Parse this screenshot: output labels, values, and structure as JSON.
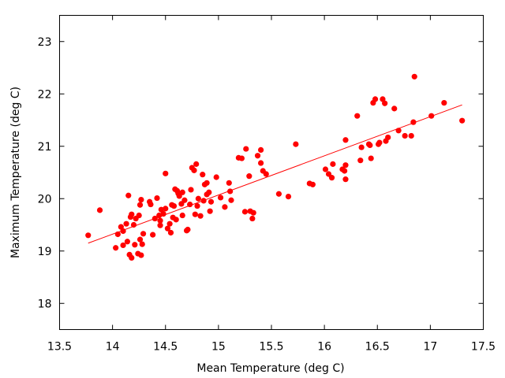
{
  "chart_data": {
    "type": "scatter",
    "title": "",
    "xlabel": "Mean Temperature (deg C)",
    "ylabel": "Maximum Temperature (deg C)",
    "xlim": [
      13.5,
      17.5
    ],
    "ylim": [
      17.5,
      23.5
    ],
    "xticks": [
      "13.5",
      "14",
      "14.5",
      "15",
      "15.5",
      "16",
      "16.5",
      "17",
      "17.5"
    ],
    "yticks": [
      "18",
      "19",
      "20",
      "21",
      "22",
      "23"
    ],
    "grid": false,
    "legend": "none",
    "point_color": "#ff0000",
    "line_color": "#ff0000",
    "fit_line": {
      "x": [
        13.77,
        17.3
      ],
      "y": [
        19.15,
        21.79
      ]
    },
    "points": [
      [
        13.77,
        19.3
      ],
      [
        13.88,
        19.78
      ],
      [
        14.03,
        19.06
      ],
      [
        14.05,
        19.32
      ],
      [
        14.08,
        19.46
      ],
      [
        14.1,
        19.11
      ],
      [
        14.1,
        19.38
      ],
      [
        14.13,
        19.52
      ],
      [
        14.14,
        19.18
      ],
      [
        14.15,
        20.06
      ],
      [
        14.16,
        18.93
      ],
      [
        14.17,
        19.65
      ],
      [
        14.18,
        18.87
      ],
      [
        14.18,
        19.7
      ],
      [
        14.2,
        19.5
      ],
      [
        14.21,
        19.12
      ],
      [
        14.22,
        19.62
      ],
      [
        14.24,
        18.95
      ],
      [
        14.25,
        19.68
      ],
      [
        14.26,
        19.88
      ],
      [
        14.26,
        19.22
      ],
      [
        14.27,
        18.92
      ],
      [
        14.27,
        19.98
      ],
      [
        14.28,
        19.13
      ],
      [
        14.29,
        19.33
      ],
      [
        14.35,
        19.94
      ],
      [
        14.36,
        19.89
      ],
      [
        14.38,
        19.31
      ],
      [
        14.4,
        19.62
      ],
      [
        14.42,
        20.01
      ],
      [
        14.44,
        19.68
      ],
      [
        14.45,
        19.58
      ],
      [
        14.45,
        19.49
      ],
      [
        14.46,
        19.79
      ],
      [
        14.48,
        19.71
      ],
      [
        14.5,
        19.81
      ],
      [
        14.5,
        20.48
      ],
      [
        14.52,
        19.43
      ],
      [
        14.54,
        19.52
      ],
      [
        14.55,
        19.35
      ],
      [
        14.56,
        19.88
      ],
      [
        14.57,
        19.64
      ],
      [
        14.58,
        19.86
      ],
      [
        14.59,
        20.18
      ],
      [
        14.6,
        19.6
      ],
      [
        14.61,
        20.15
      ],
      [
        14.62,
        20.1
      ],
      [
        14.63,
        20.05
      ],
      [
        14.65,
        19.9
      ],
      [
        14.66,
        20.12
      ],
      [
        14.66,
        19.68
      ],
      [
        14.68,
        19.97
      ],
      [
        14.7,
        19.39
      ],
      [
        14.71,
        19.41
      ],
      [
        14.73,
        19.89
      ],
      [
        14.74,
        20.17
      ],
      [
        14.75,
        20.59
      ],
      [
        14.77,
        20.54
      ],
      [
        14.78,
        19.7
      ],
      [
        14.79,
        20.66
      ],
      [
        14.8,
        19.86
      ],
      [
        14.81,
        20.0
      ],
      [
        14.83,
        19.67
      ],
      [
        14.85,
        20.46
      ],
      [
        14.86,
        19.96
      ],
      [
        14.87,
        20.27
      ],
      [
        14.89,
        20.3
      ],
      [
        14.89,
        20.08
      ],
      [
        14.91,
        20.12
      ],
      [
        14.92,
        19.76
      ],
      [
        14.93,
        19.94
      ],
      [
        14.98,
        20.41
      ],
      [
        15.02,
        20.02
      ],
      [
        15.06,
        19.84
      ],
      [
        15.1,
        20.3
      ],
      [
        15.11,
        20.14
      ],
      [
        15.12,
        19.97
      ],
      [
        15.19,
        20.78
      ],
      [
        15.22,
        20.77
      ],
      [
        15.25,
        19.75
      ],
      [
        15.26,
        20.95
      ],
      [
        15.29,
        20.43
      ],
      [
        15.3,
        19.76
      ],
      [
        15.32,
        19.62
      ],
      [
        15.33,
        19.73
      ],
      [
        15.37,
        20.82
      ],
      [
        15.4,
        20.93
      ],
      [
        15.4,
        20.68
      ],
      [
        15.42,
        20.53
      ],
      [
        15.45,
        20.47
      ],
      [
        15.57,
        20.09
      ],
      [
        15.66,
        20.04
      ],
      [
        15.73,
        21.04
      ],
      [
        15.86,
        20.29
      ],
      [
        15.89,
        20.27
      ],
      [
        16.01,
        20.56
      ],
      [
        16.04,
        20.47
      ],
      [
        16.07,
        20.4
      ],
      [
        16.08,
        20.66
      ],
      [
        16.17,
        20.56
      ],
      [
        16.19,
        20.53
      ],
      [
        16.2,
        20.37
      ],
      [
        16.2,
        20.64
      ],
      [
        16.2,
        21.12
      ],
      [
        16.31,
        21.58
      ],
      [
        16.34,
        20.73
      ],
      [
        16.35,
        20.98
      ],
      [
        16.42,
        21.04
      ],
      [
        16.43,
        21.02
      ],
      [
        16.44,
        20.77
      ],
      [
        16.46,
        21.83
      ],
      [
        16.48,
        21.9
      ],
      [
        16.51,
        21.04
      ],
      [
        16.52,
        21.07
      ],
      [
        16.55,
        21.9
      ],
      [
        16.57,
        21.82
      ],
      [
        16.58,
        21.1
      ],
      [
        16.6,
        21.17
      ],
      [
        16.66,
        21.72
      ],
      [
        16.7,
        21.3
      ],
      [
        16.76,
        21.2
      ],
      [
        16.82,
        21.2
      ],
      [
        16.84,
        21.46
      ],
      [
        16.85,
        22.33
      ],
      [
        17.01,
        21.58
      ],
      [
        17.13,
        21.83
      ],
      [
        17.3,
        21.49
      ]
    ]
  }
}
